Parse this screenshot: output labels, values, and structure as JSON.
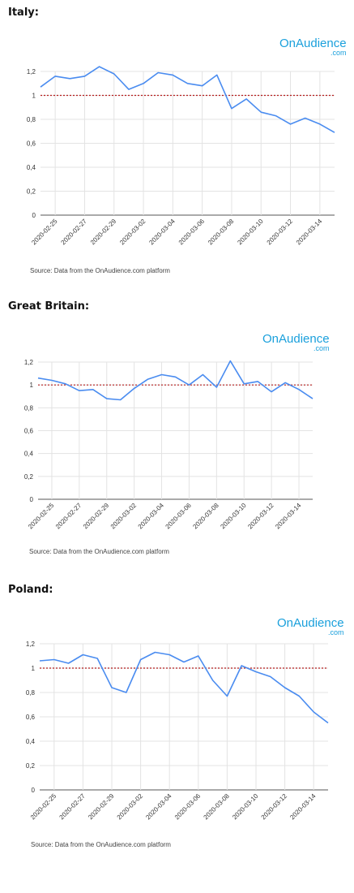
{
  "logo": {
    "main": "OnAudience",
    "sub": ".com"
  },
  "chart_data": [
    {
      "type": "line",
      "title": "Italy:",
      "x": [
        "2020-02-24",
        "2020-02-25",
        "2020-02-26",
        "2020-02-27",
        "2020-02-28",
        "2020-02-29",
        "2020-03-01",
        "2020-03-02",
        "2020-03-03",
        "2020-03-04",
        "2020-03-05",
        "2020-03-06",
        "2020-03-07",
        "2020-03-08",
        "2020-03-09",
        "2020-03-10",
        "2020-03-11",
        "2020-03-12",
        "2020-03-13",
        "2020-03-14",
        "2020-03-15"
      ],
      "xticklabels": [
        "2020-02-25",
        "2020-02-27",
        "2020-02-29",
        "2020-03-02",
        "2020-03-04",
        "2020-03-06",
        "2020-03-08",
        "2020-03-10",
        "2020-03-12",
        "2020-03-14"
      ],
      "values": [
        1.07,
        1.16,
        1.14,
        1.16,
        1.24,
        1.18,
        1.05,
        1.1,
        1.19,
        1.17,
        1.1,
        1.08,
        1.17,
        0.89,
        0.97,
        0.86,
        0.83,
        0.76,
        0.81,
        0.76,
        0.69
      ],
      "reference_line": 1,
      "ylim": [
        0,
        1.2
      ],
      "yticks": [
        "0",
        "0,2",
        "0,4",
        "0,6",
        "0,8",
        "1",
        "1,2"
      ],
      "grid": true,
      "source": "Source: Data from the OnAudience.com platform"
    },
    {
      "type": "line",
      "title": "Great Britain:",
      "x": [
        "2020-02-24",
        "2020-02-25",
        "2020-02-26",
        "2020-02-27",
        "2020-02-28",
        "2020-02-29",
        "2020-03-01",
        "2020-03-02",
        "2020-03-03",
        "2020-03-04",
        "2020-03-05",
        "2020-03-06",
        "2020-03-07",
        "2020-03-08",
        "2020-03-09",
        "2020-03-10",
        "2020-03-11",
        "2020-03-12",
        "2020-03-13",
        "2020-03-14",
        "2020-03-15"
      ],
      "xticklabels": [
        "2020-02-25",
        "2020-02-27",
        "2020-02-29",
        "2020-03-02",
        "2020-03-04",
        "2020-03-06",
        "2020-03-08",
        "2020-03-10",
        "2020-03-12",
        "2020-03-14"
      ],
      "values": [
        1.06,
        1.04,
        1.01,
        0.95,
        0.96,
        0.88,
        0.87,
        0.97,
        1.05,
        1.09,
        1.07,
        1.0,
        1.09,
        0.98,
        1.21,
        1.01,
        1.03,
        0.94,
        1.02,
        0.96,
        0.88
      ],
      "reference_line": 1,
      "ylim": [
        0,
        1.2
      ],
      "yticks": [
        "0",
        "0,2",
        "0,4",
        "0,6",
        "0,8",
        "1",
        "1,2"
      ],
      "grid": true,
      "source": "Source: Data from the OnAudience.com platform"
    },
    {
      "type": "line",
      "title": "Poland:",
      "x": [
        "2020-02-24",
        "2020-02-25",
        "2020-02-26",
        "2020-02-27",
        "2020-02-28",
        "2020-02-29",
        "2020-03-01",
        "2020-03-02",
        "2020-03-03",
        "2020-03-04",
        "2020-03-05",
        "2020-03-06",
        "2020-03-07",
        "2020-03-08",
        "2020-03-09",
        "2020-03-10",
        "2020-03-11",
        "2020-03-12",
        "2020-03-13",
        "2020-03-14",
        "2020-03-15"
      ],
      "xticklabels": [
        "2020-02-25",
        "2020-02-27",
        "2020-02-29",
        "2020-03-02",
        "2020-03-04",
        "2020-03-06",
        "2020-03-08",
        "2020-03-10",
        "2020-03-12",
        "2020-03-14"
      ],
      "values": [
        1.06,
        1.07,
        1.04,
        1.11,
        1.08,
        0.84,
        0.8,
        1.07,
        1.13,
        1.11,
        1.05,
        1.1,
        0.9,
        0.77,
        1.02,
        0.97,
        0.93,
        0.84,
        0.77,
        0.64,
        0.55
      ],
      "reference_line": 1,
      "ylim": [
        0,
        1.2
      ],
      "yticks": [
        "0",
        "0,2",
        "0,4",
        "0,6",
        "0,8",
        "1",
        "1,2"
      ],
      "grid": true,
      "source": "Source: Data from the OnAudience.com platform"
    }
  ]
}
